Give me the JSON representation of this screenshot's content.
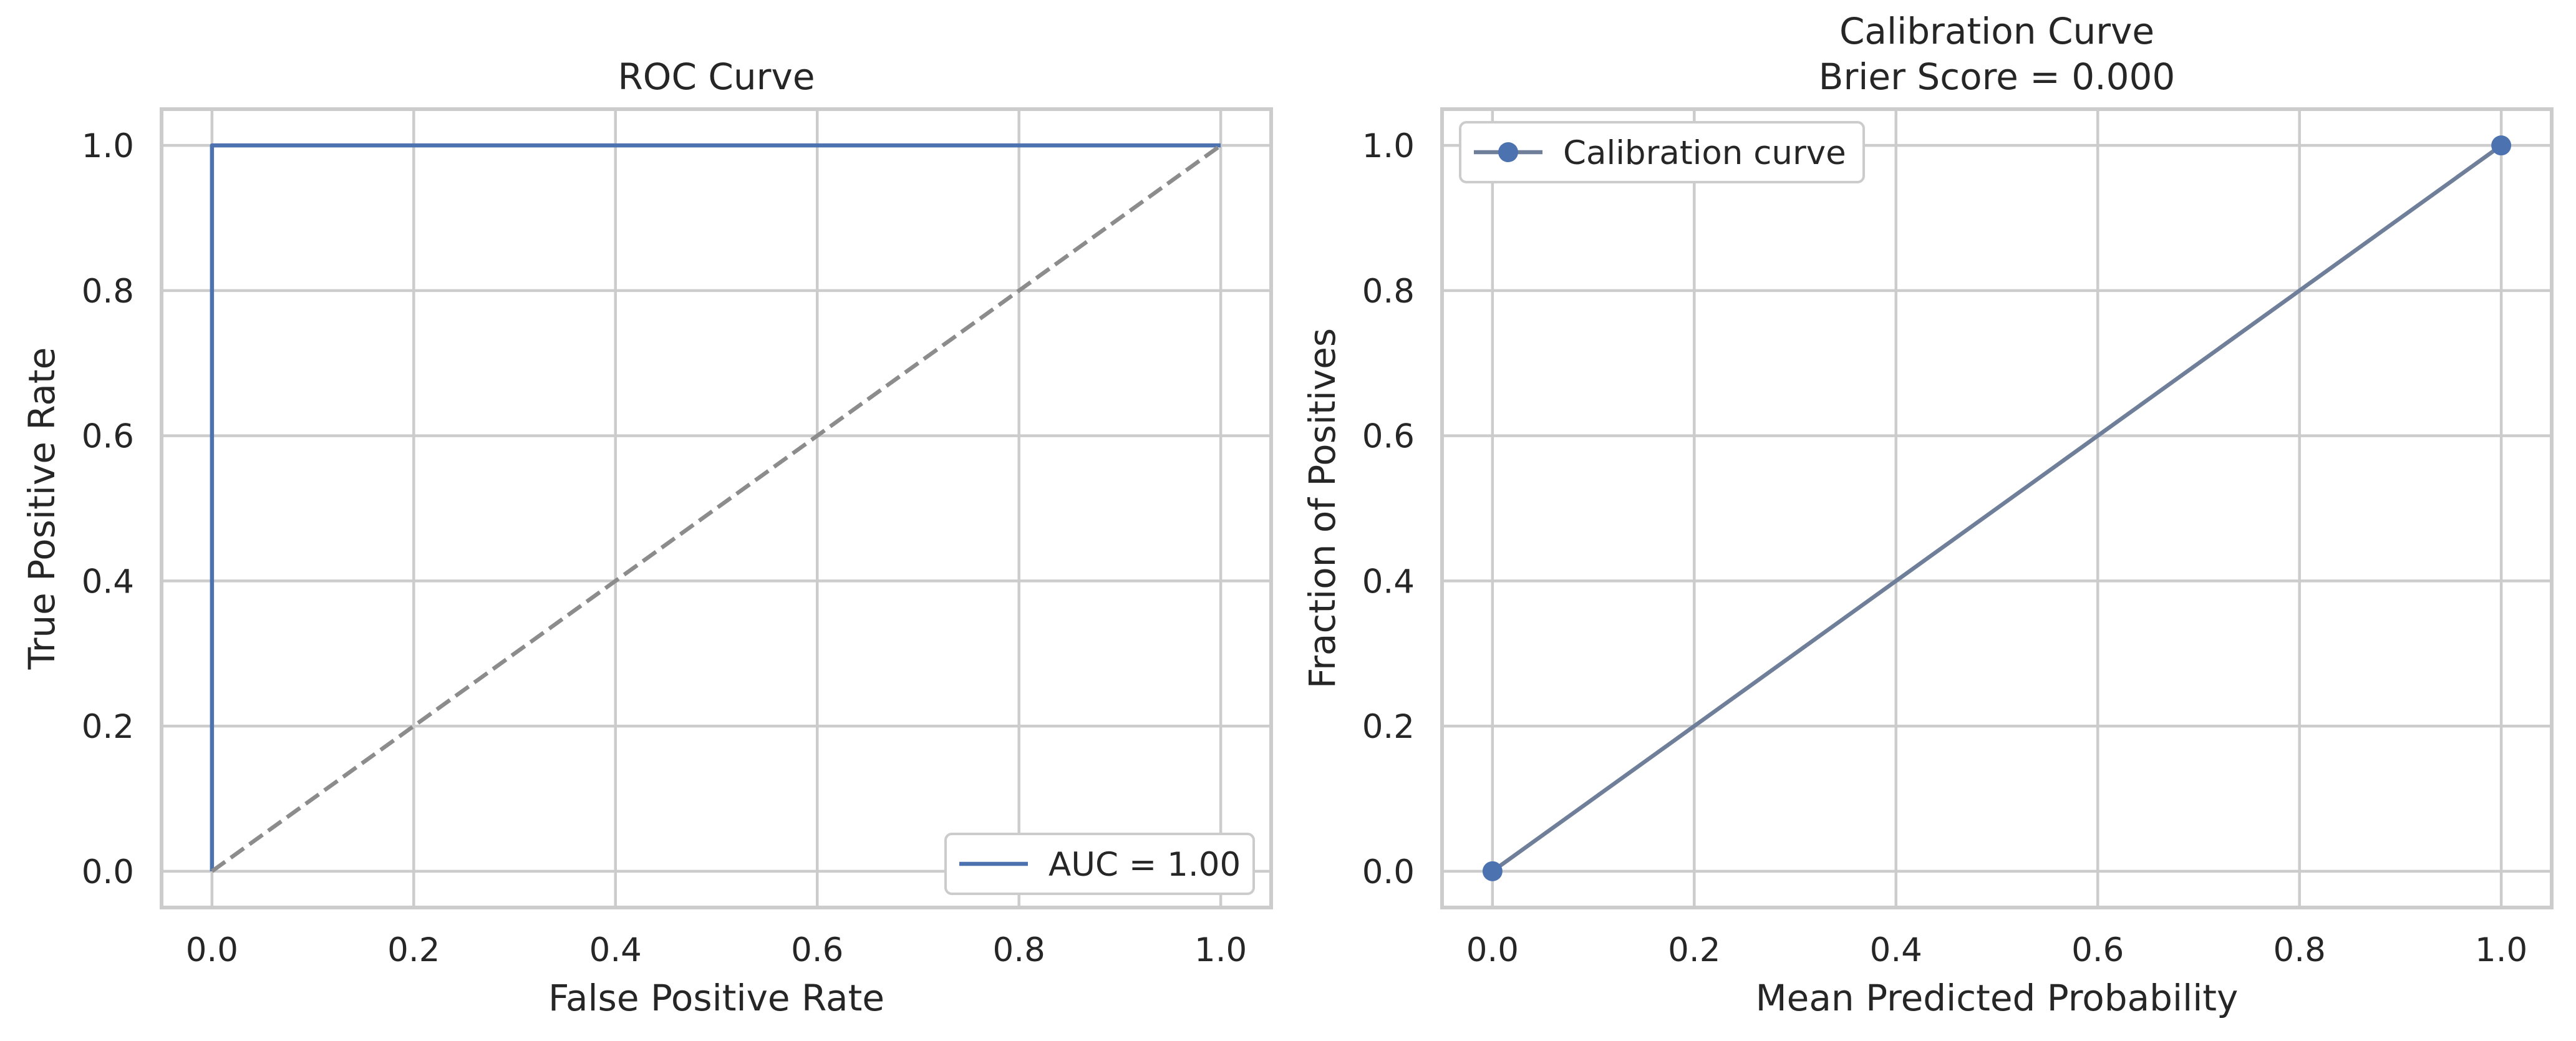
{
  "colors": {
    "roc_line": "#4c72b0",
    "chance_line": "#8c8c8c",
    "calibration_line": "#6f7f9a",
    "calibration_marker": "#4c72b0",
    "grid": "#cccccc",
    "text": "#262626"
  },
  "chart_data": [
    {
      "type": "line",
      "title": "ROC Curve",
      "xlabel": "False Positive Rate",
      "ylabel": "True Positive Rate",
      "xlim": [
        -0.05,
        1.05
      ],
      "ylim": [
        -0.05,
        1.05
      ],
      "grid": true,
      "xticks": [
        0.0,
        0.2,
        0.4,
        0.6,
        0.8,
        1.0
      ],
      "yticks": [
        0.0,
        0.2,
        0.4,
        0.6,
        0.8,
        1.0
      ],
      "xtick_labels": [
        "0.0",
        "0.2",
        "0.4",
        "0.6",
        "0.8",
        "1.0"
      ],
      "ytick_labels": [
        "0.0",
        "0.2",
        "0.4",
        "0.6",
        "0.8",
        "1.0"
      ],
      "legend_position": "lower-right",
      "series": [
        {
          "name": "AUC = 1.00",
          "x": [
            0.0,
            0.0,
            1.0
          ],
          "y": [
            0.0,
            1.0,
            1.0
          ],
          "style": "solid",
          "markers": false,
          "in_legend": true
        },
        {
          "name": "chance",
          "x": [
            0.0,
            1.0
          ],
          "y": [
            0.0,
            1.0
          ],
          "style": "dashed",
          "markers": false,
          "in_legend": false
        }
      ]
    },
    {
      "type": "line",
      "title": "Calibration Curve",
      "subtitle": "Brier Score = 0.000",
      "xlabel": "Mean Predicted Probability",
      "ylabel": "Fraction of Positives",
      "xlim": [
        -0.05,
        1.05
      ],
      "ylim": [
        -0.05,
        1.05
      ],
      "grid": true,
      "xticks": [
        0.0,
        0.2,
        0.4,
        0.6,
        0.8,
        1.0
      ],
      "yticks": [
        0.0,
        0.2,
        0.4,
        0.6,
        0.8,
        1.0
      ],
      "xtick_labels": [
        "0.0",
        "0.2",
        "0.4",
        "0.6",
        "0.8",
        "1.0"
      ],
      "ytick_labels": [
        "0.0",
        "0.2",
        "0.4",
        "0.6",
        "0.8",
        "1.0"
      ],
      "legend_position": "upper-left",
      "series": [
        {
          "name": "Calibration curve",
          "x": [
            0.0,
            1.0
          ],
          "y": [
            0.0,
            1.0
          ],
          "style": "solid",
          "markers": true,
          "in_legend": true
        }
      ]
    }
  ]
}
